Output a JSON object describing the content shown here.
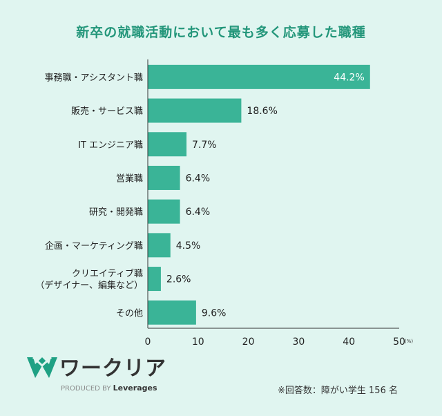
{
  "chart_data": {
    "type": "bar",
    "orientation": "horizontal",
    "title": "新卒の就職活動において最も多く応募した職種",
    "categories": [
      "事務職・アシスタント職",
      "販売・サービス職",
      "IT エンジニア職",
      "営業職",
      "研究・開発職",
      "企画・マーケティング職",
      "クリエイティブ職\n（デザイナー、編集など）",
      "その他"
    ],
    "values": [
      44.2,
      18.6,
      7.7,
      6.4,
      6.4,
      4.5,
      2.6,
      9.6
    ],
    "value_labels": [
      "44.2%",
      "18.6%",
      "7.7%",
      "6.4%",
      "6.4%",
      "4.5%",
      "2.6%",
      "9.6%"
    ],
    "xlim": [
      0,
      50
    ],
    "xticks": [
      "0",
      "10",
      "20",
      "30",
      "40",
      "50"
    ],
    "xunit": "(%)",
    "grid": false,
    "bar_color": "#3ab497"
  },
  "footer": {
    "brand": "ワークリア",
    "produced_by": "PRODUCED BY",
    "company": "Leverages",
    "note": "※回答数：障がい学生 156 名"
  }
}
